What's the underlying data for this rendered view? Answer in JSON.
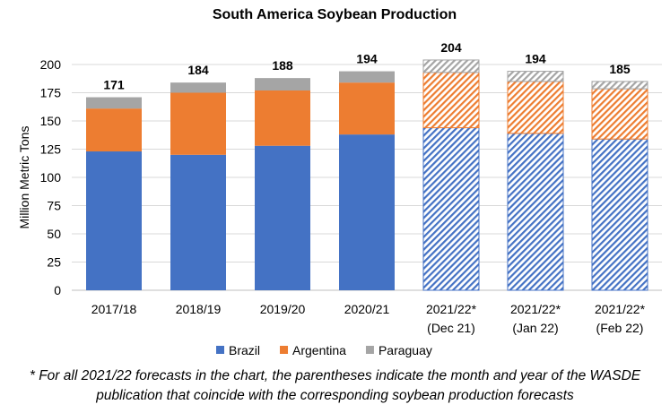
{
  "chart_data": {
    "type": "bar",
    "stacked": true,
    "title": "South America Soybean Production",
    "xlabel": "",
    "ylabel": "Million Metric Tons",
    "ylim": [
      0,
      200
    ],
    "yticks": [
      0,
      25,
      50,
      75,
      100,
      125,
      150,
      175,
      200
    ],
    "grid": true,
    "legend_position": "bottom",
    "categories": [
      [
        "2017/18"
      ],
      [
        "2018/19"
      ],
      [
        "2019/20"
      ],
      [
        "2020/21"
      ],
      [
        "2021/22*",
        "(Dec 21)"
      ],
      [
        "2021/22*",
        "(Jan 22)"
      ],
      [
        "2021/22*",
        "(Feb 22)"
      ]
    ],
    "forecast": [
      false,
      false,
      false,
      false,
      true,
      true,
      true
    ],
    "totals": [
      "171",
      "184",
      "188",
      "194",
      "204",
      "194",
      "185"
    ],
    "series": [
      {
        "name": "Brazil",
        "color": "#4472C4",
        "values": [
          123,
          120,
          128,
          138,
          144,
          139,
          134
        ]
      },
      {
        "name": "Argentina",
        "color": "#ED7D31",
        "values": [
          38,
          55,
          49,
          46,
          49,
          46,
          44.5
        ]
      },
      {
        "name": "Paraguay",
        "color": "#A5A5A5",
        "values": [
          10,
          9,
          11,
          10,
          11,
          9,
          6.5
        ]
      }
    ]
  },
  "footnote": {
    "line1": "* For all 2021/22 forecasts in the chart, the parentheses indicate the month and year of the WASDE",
    "line2": "publication that coincide with the corresponding soybean production forecasts"
  }
}
